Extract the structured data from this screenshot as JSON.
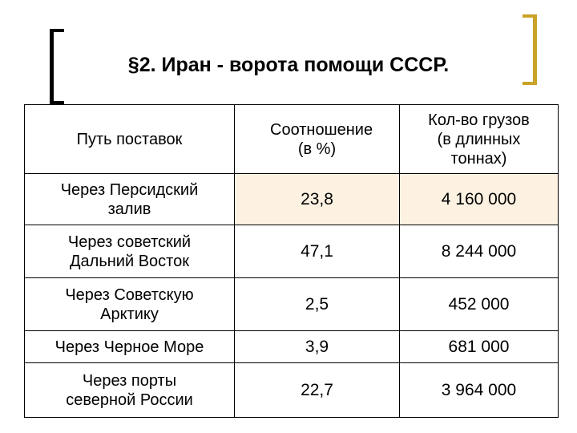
{
  "title": "§2. Иран - ворота помощи СССР.",
  "colors": {
    "left_bracket": "#000000",
    "right_bracket": "#c9a227",
    "highlight_row": "#fdf2e1"
  },
  "table": {
    "headers": [
      "Путь поставок",
      "Соотношение (в %)",
      "Кол-во грузов (в длинных тоннах)"
    ],
    "rows": [
      {
        "route": "Через Персидский залив",
        "share": "23,8",
        "tons": "4 160 000"
      },
      {
        "route": "Через советский Дальний Восток",
        "share": "47,1",
        "tons": "8 244 000"
      },
      {
        "route": "Через Советскую Арктику",
        "share": "2,5",
        "tons": "452 000"
      },
      {
        "route": "Через Черное Море",
        "share": "3,9",
        "tons": "681 000"
      },
      {
        "route": "Через порты северной России",
        "share": "22,7",
        "tons": "3 964 000"
      }
    ]
  }
}
